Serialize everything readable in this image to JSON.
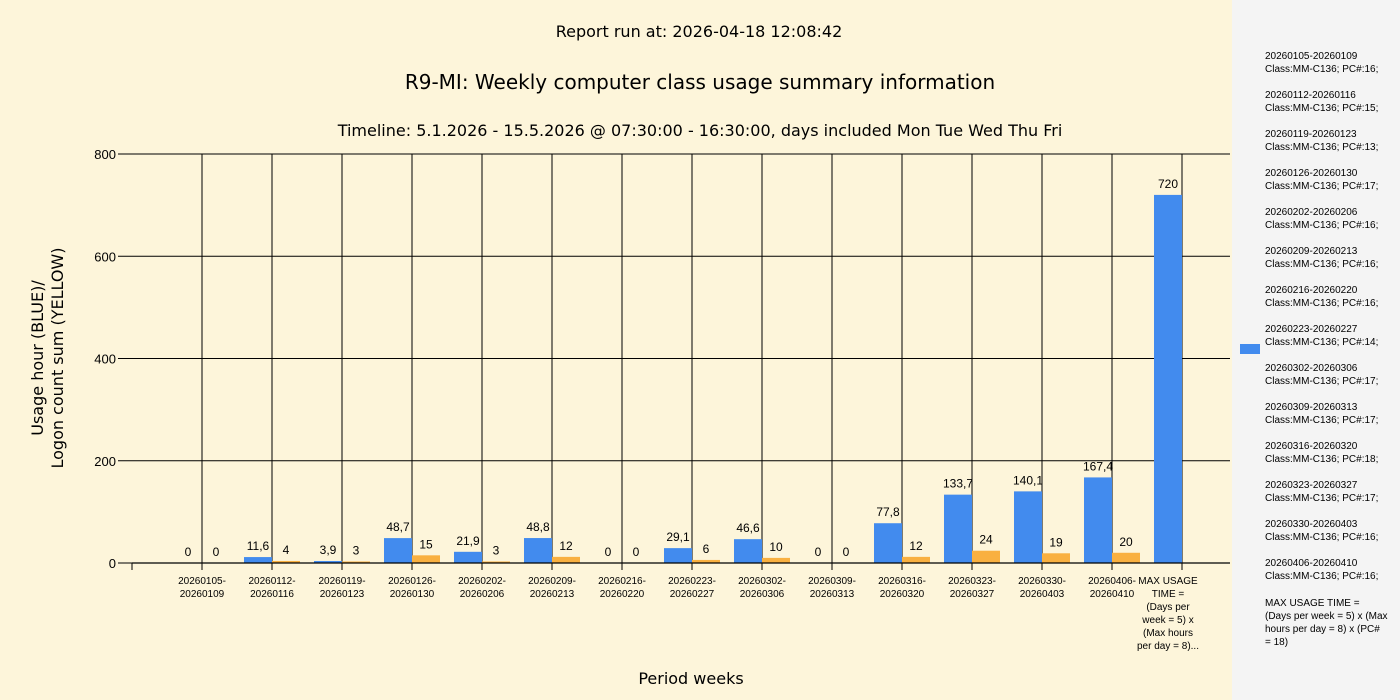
{
  "header": {
    "report_run": "Report run at: 2026-04-18 12:08:42",
    "title": "R9-MI: Weekly computer class usage summary information",
    "timeline": "Timeline:  5.1.2026  - 15.5.2026  @  07:30:00 -  16:30:00, days included Mon Tue Wed Thu Fri"
  },
  "colors": {
    "blue": "#428bee",
    "yellow": "#f9b040",
    "background": "#fdf5da",
    "legend_bg": "#f4f4f4"
  },
  "chart_data": {
    "type": "bar",
    "title": "R9-MI: Weekly computer class usage summary information",
    "xlabel": "Period weeks",
    "ylabel_line1": "Usage hour (BLUE)/",
    "ylabel_line2": "Logon count sum (YELLOW)",
    "ylim": [
      0,
      800
    ],
    "yticks": [
      0,
      200,
      400,
      600,
      800
    ],
    "grid": true,
    "legend_position": "right",
    "categories": [
      [
        "20260105-",
        "20260109"
      ],
      [
        "20260112-",
        "20260116"
      ],
      [
        "20260119-",
        "20260123"
      ],
      [
        "20260126-",
        "20260130"
      ],
      [
        "20260202-",
        "20260206"
      ],
      [
        "20260209-",
        "20260213"
      ],
      [
        "20260216-",
        "20260220"
      ],
      [
        "20260223-",
        "20260227"
      ],
      [
        "20260302-",
        "20260306"
      ],
      [
        "20260309-",
        "20260313"
      ],
      [
        "20260316-",
        "20260320"
      ],
      [
        "20260323-",
        "20260327"
      ],
      [
        "20260330-",
        "20260403"
      ],
      [
        "20260406-",
        "20260410"
      ],
      [
        "MAX USAGE",
        "TIME =",
        "(Days per",
        "week = 5) x",
        "(Max hours",
        "per day = 8)..."
      ]
    ],
    "series": [
      {
        "name": "Usage hour",
        "color": "#428bee",
        "values": [
          0,
          11.6,
          3.9,
          48.7,
          21.9,
          48.8,
          0,
          29.1,
          46.6,
          0,
          77.8,
          133.7,
          140.1,
          167.4,
          720
        ],
        "labels": [
          "0",
          "11,6",
          "3,9",
          "48,7",
          "21,9",
          "48,8",
          "0",
          "29,1",
          "46,6",
          "0",
          "77,8",
          "133,7",
          "140,1",
          "167,4",
          "720"
        ]
      },
      {
        "name": "Logon count sum",
        "color": "#f9b040",
        "values": [
          0,
          4,
          3,
          15,
          3,
          12,
          0,
          6,
          10,
          0,
          12,
          24,
          19,
          20,
          null
        ],
        "labels": [
          "0",
          "4",
          "3",
          "15",
          "3",
          "12",
          "0",
          "6",
          "10",
          "0",
          "12",
          "24",
          "19",
          "20",
          null
        ]
      }
    ]
  },
  "legend": {
    "items": [
      "20260105-20260109\nClass:MM-C136; PC#:16;",
      "20260112-20260116\nClass:MM-C136; PC#:15;",
      "20260119-20260123\nClass:MM-C136; PC#:13;",
      "20260126-20260130\nClass:MM-C136; PC#:17;",
      "20260202-20260206\nClass:MM-C136; PC#:16;",
      "20260209-20260213\nClass:MM-C136; PC#:16;",
      "20260216-20260220\nClass:MM-C136; PC#:16;",
      "20260223-20260227\nClass:MM-C136; PC#:14;",
      "20260302-20260306\nClass:MM-C136; PC#:17;",
      "20260309-20260313\nClass:MM-C136; PC#:17;",
      "20260316-20260320\nClass:MM-C136; PC#:18;",
      "20260323-20260327\nClass:MM-C136; PC#:17;",
      "20260330-20260403\nClass:MM-C136; PC#:16;",
      "20260406-20260410\nClass:MM-C136; PC#:16;",
      "MAX USAGE TIME =\n (Days per week = 5) x (Max\nhours per day = 8) x (PC#\n= 18)"
    ]
  }
}
